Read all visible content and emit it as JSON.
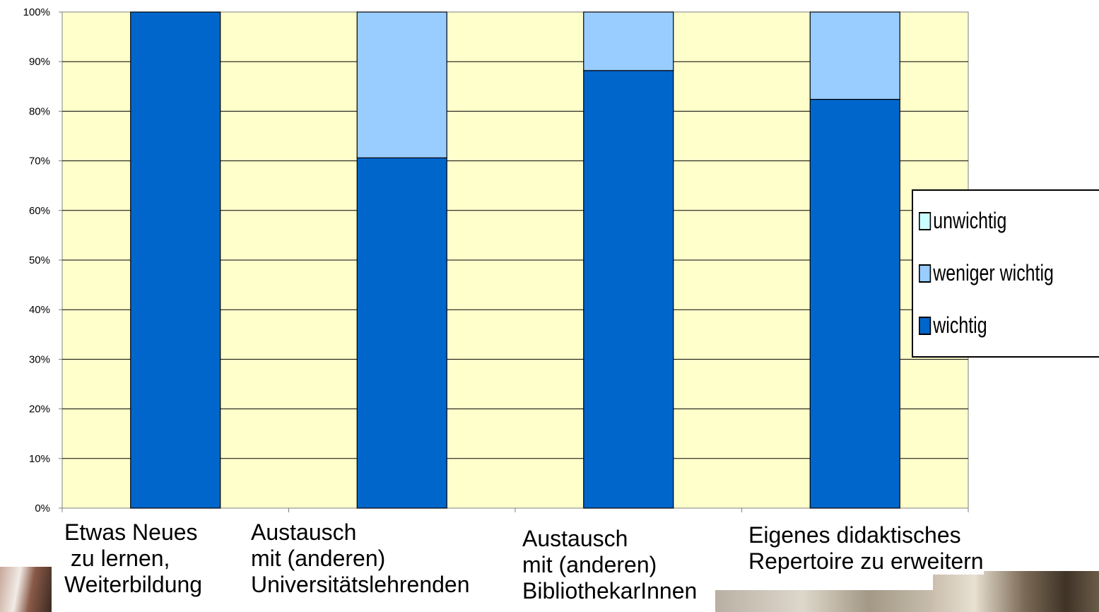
{
  "chart_data": {
    "type": "bar",
    "stacked": true,
    "normalized_percent": true,
    "categories": [
      "Etwas Neues\n zu lernen,\nWeiterbildung",
      "Austausch\nmit (anderen)\nUniversitätslehrenden",
      "Austausch\nmit (anderen)\nBibliothekarInnen",
      "Eigenes didaktisches\nRepertoire zu erweitern"
    ],
    "series": [
      {
        "name": "wichtig",
        "color": "#0066cc",
        "values": [
          100,
          70.6,
          88.2,
          82.4
        ]
      },
      {
        "name": "weniger wichtig",
        "color": "#99ccff",
        "values": [
          0,
          29.4,
          11.8,
          17.6
        ]
      },
      {
        "name": "unwichtig",
        "color": "#ccffff",
        "values": [
          0,
          0,
          0,
          0
        ]
      }
    ],
    "yticks": [
      "0%",
      "10%",
      "20%",
      "30%",
      "40%",
      "50%",
      "60%",
      "70%",
      "80%",
      "90%",
      "100%"
    ],
    "ylim": [
      0,
      100
    ],
    "grid": true,
    "plot_background": "#ffffcc",
    "legend_position": "right",
    "legend_order": [
      "unwichtig",
      "weniger wichtig",
      "wichtig"
    ]
  }
}
